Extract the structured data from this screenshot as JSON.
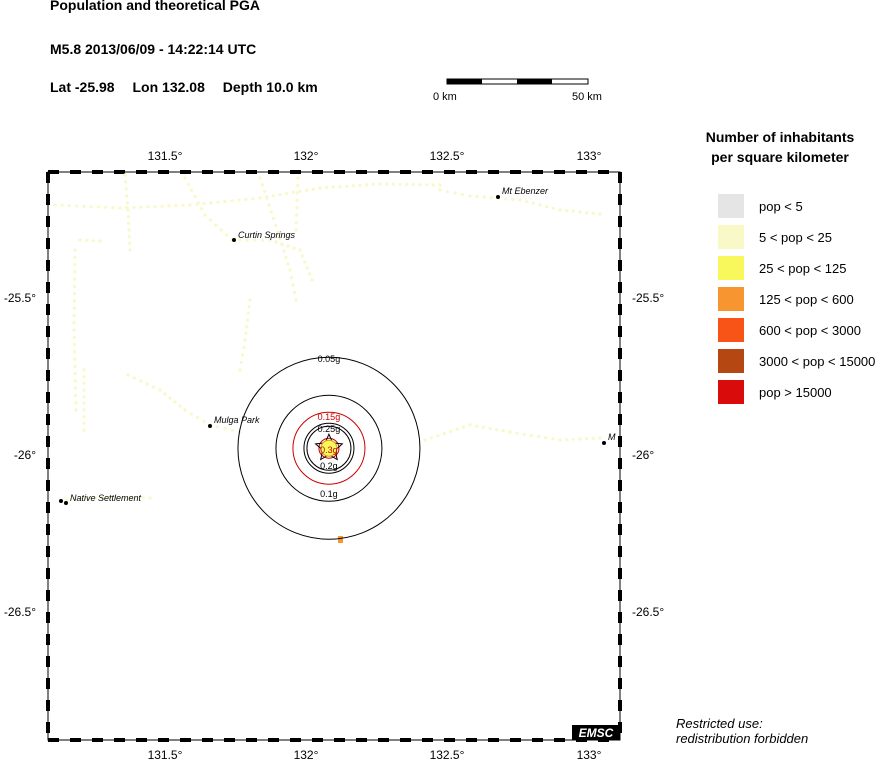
{
  "header": {
    "title": "Population and theoretical PGA",
    "event": "M5.8  2013/06/09 - 14:22:14 UTC",
    "lat": "Lat -25.98",
    "lon": "Lon 132.08",
    "depth": "Depth  10.0 km"
  },
  "scale_bar": {
    "left_label": "0 km",
    "right_label": "50 km"
  },
  "map": {
    "epicenter": {
      "lat": -25.98,
      "lon": 132.08
    },
    "lon_ticks": [
      "131.5°",
      "132°",
      "132.5°",
      "133°"
    ],
    "lat_ticks": [
      "-25.5°",
      "-26°",
      "-26.5°"
    ],
    "places": [
      {
        "name": "Mt Ebenzer"
      },
      {
        "name": "Curtin Springs"
      },
      {
        "name": "Mulga Park"
      },
      {
        "name": "Native Settlement"
      },
      {
        "name": "M"
      }
    ],
    "pga_contours": [
      {
        "label": "0.05g",
        "color": "#000000"
      },
      {
        "label": "0.1g",
        "color": "#000000"
      },
      {
        "label": "0.15g",
        "color": "#cc0000"
      },
      {
        "label": "0.2g",
        "color": "#000000"
      },
      {
        "label": "0.25g",
        "color": "#000000"
      },
      {
        "label": "0.3g",
        "color": "#cc0000"
      }
    ],
    "logo": "EMSC"
  },
  "legend": {
    "title_line1": "Number of inhabitants",
    "title_line2": "per square kilometer",
    "items": [
      {
        "label": "pop < 5",
        "color": "#e5e5e5"
      },
      {
        "label": "5 < pop < 25",
        "color": "#f9f8c7"
      },
      {
        "label": "25 < pop < 125",
        "color": "#f8f75c"
      },
      {
        "label": "125 < pop < 600",
        "color": "#f79530"
      },
      {
        "label": "600 < pop < 3000",
        "color": "#f95417"
      },
      {
        "label": "3000 < pop < 15000",
        "color": "#b54712"
      },
      {
        "label": "pop > 15000",
        "color": "#d90b0b"
      }
    ]
  },
  "footer": {
    "restricted_line1": "Restricted use:",
    "restricted_line2": "redistribution forbidden"
  }
}
